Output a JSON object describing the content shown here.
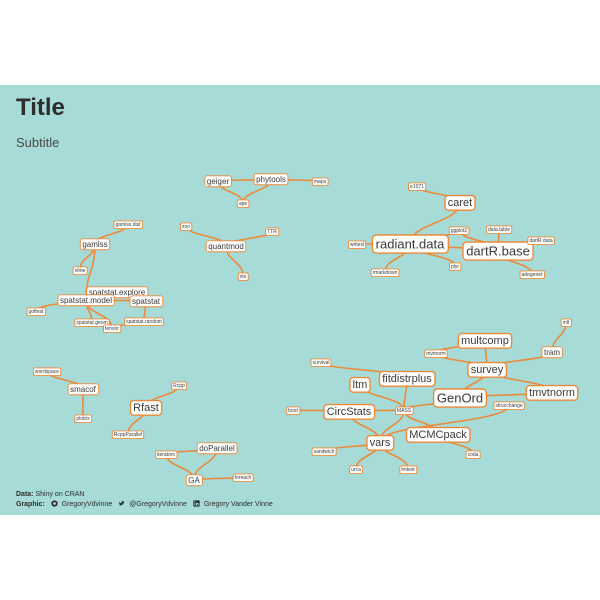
{
  "header": {
    "title": "Title",
    "subtitle": "Subtitle"
  },
  "caption": {
    "data_label": "Data:",
    "data_value": "Shiny on CRAN",
    "graphic_label": "Graphic:",
    "github": "GregoryVdvinne",
    "twitter": "@GregoryVdvinne",
    "linkedin": "Gregory Vander Vinne"
  },
  "colors": {
    "panel": "#a6dbd7",
    "edge": "#ec8a3a",
    "label_fill": "#ffffff",
    "text": "#2e2e2e"
  },
  "nodes": [
    {
      "id": "geiger",
      "label": "geiger",
      "size": "s"
    },
    {
      "id": "phytools",
      "label": "phytools",
      "size": "s"
    },
    {
      "id": "ape",
      "label": "ape",
      "size": "xs"
    },
    {
      "id": "maps",
      "label": "maps",
      "size": "xs"
    },
    {
      "id": "caret",
      "label": "caret",
      "size": "m"
    },
    {
      "id": "e1071",
      "label": "e1071",
      "size": "xs"
    },
    {
      "id": "radiant",
      "label": "radiant.data",
      "size": "l"
    },
    {
      "id": "dartr",
      "label": "dartR.base",
      "size": "l"
    },
    {
      "id": "plyr",
      "label": "plyr",
      "size": "xs"
    },
    {
      "id": "ggplot2",
      "label": "ggplot2",
      "size": "xs"
    },
    {
      "id": "rmarkdown",
      "label": "rmarkdown",
      "size": "xs"
    },
    {
      "id": "writexl",
      "label": "writexl",
      "size": "xs"
    },
    {
      "id": "dartrdata",
      "label": "dartR.data",
      "size": "xs"
    },
    {
      "id": "data_table",
      "label": "data.table",
      "size": "xs"
    },
    {
      "id": "adegenet",
      "label": "adegenet",
      "size": "xs"
    },
    {
      "id": "gamlss_dist",
      "label": "gamlss.dist",
      "size": "xs"
    },
    {
      "id": "gamlss",
      "label": "gamlss",
      "size": "s"
    },
    {
      "id": "nlme",
      "label": "nlme",
      "size": "xs"
    },
    {
      "id": "quantmod",
      "label": "quantmod",
      "size": "s"
    },
    {
      "id": "zoo",
      "label": "zoo",
      "size": "xs"
    },
    {
      "id": "ttr",
      "label": "TTR",
      "size": "xs"
    },
    {
      "id": "xts",
      "label": "xts",
      "size": "xs"
    },
    {
      "id": "spat_explore",
      "label": "spatstat.explore",
      "size": "s"
    },
    {
      "id": "spat_model",
      "label": "spatstat.model",
      "size": "s"
    },
    {
      "id": "spatstat",
      "label": "spatstat",
      "size": "s"
    },
    {
      "id": "spat_geom",
      "label": "spatstat.geom",
      "size": "xs"
    },
    {
      "id": "spat_random",
      "label": "spatstat.random",
      "size": "xs"
    },
    {
      "id": "goftest",
      "label": "goftest",
      "size": "xs"
    },
    {
      "id": "tensor",
      "label": "tensor",
      "size": "xs"
    },
    {
      "id": "multcomp",
      "label": "multcomp",
      "size": "m"
    },
    {
      "id": "mvtnorm",
      "label": "mvtnorm",
      "size": "xs"
    },
    {
      "id": "survey",
      "label": "survey",
      "size": "m"
    },
    {
      "id": "tram",
      "label": "tram",
      "size": "s"
    },
    {
      "id": "mlt",
      "label": "mlt",
      "size": "xs"
    },
    {
      "id": "tmvtnorm",
      "label": "tmvtnorm",
      "size": "m"
    },
    {
      "id": "fitdistrplus",
      "label": "fitdistrplus",
      "size": "m"
    },
    {
      "id": "ltm",
      "label": "ltm",
      "size": "m"
    },
    {
      "id": "mass",
      "label": "MASS",
      "size": "xs"
    },
    {
      "id": "survival",
      "label": "survival",
      "size": "xs"
    },
    {
      "id": "genord",
      "label": "GenOrd",
      "size": "l"
    },
    {
      "id": "circstats",
      "label": "CircStats",
      "size": "m"
    },
    {
      "id": "boot",
      "label": "boot",
      "size": "xs"
    },
    {
      "id": "vars",
      "label": "vars",
      "size": "m"
    },
    {
      "id": "mcmcpack",
      "label": "MCMCpack",
      "size": "m"
    },
    {
      "id": "sandwich",
      "label": "sandwich",
      "size": "xs"
    },
    {
      "id": "strucchange",
      "label": "strucchange",
      "size": "xs"
    },
    {
      "id": "urca",
      "label": "urca",
      "size": "xs"
    },
    {
      "id": "coda",
      "label": "coda",
      "size": "xs"
    },
    {
      "id": "lmtest",
      "label": "lmtest",
      "size": "xs"
    },
    {
      "id": "smacof",
      "label": "smacof",
      "size": "s"
    },
    {
      "id": "rfast",
      "label": "Rfast",
      "size": "m"
    },
    {
      "id": "rcpp",
      "label": "Rcpp",
      "size": "xs"
    },
    {
      "id": "rcppparallel",
      "label": "RcppParallel",
      "size": "xs"
    },
    {
      "id": "doparallel",
      "label": "doParallel",
      "size": "s"
    },
    {
      "id": "ga",
      "label": "GA",
      "size": "s"
    },
    {
      "id": "iterators",
      "label": "iterators",
      "size": "xs"
    },
    {
      "id": "foreach",
      "label": "foreach",
      "size": "xs"
    },
    {
      "id": "wordspace",
      "label": "wordspace",
      "size": "xs"
    },
    {
      "id": "plotrix",
      "label": "plotrix",
      "size": "xs"
    }
  ],
  "edges": [
    [
      "geiger",
      "phytools"
    ],
    [
      "geiger",
      "ape"
    ],
    [
      "phytools",
      "ape"
    ],
    [
      "phytools",
      "maps"
    ],
    [
      "caret",
      "e1071"
    ],
    [
      "caret",
      "radiant"
    ],
    [
      "radiant",
      "plyr"
    ],
    [
      "radiant",
      "rmarkdown"
    ],
    [
      "radiant",
      "writexl"
    ],
    [
      "radiant",
      "ggplot2"
    ],
    [
      "radiant",
      "dartr"
    ],
    [
      "dartr",
      "dartrdata"
    ],
    [
      "dartr",
      "data_table"
    ],
    [
      "dartr",
      "adegenet"
    ],
    [
      "dartr",
      "ggplot2"
    ],
    [
      "gamlss",
      "gamlss_dist"
    ],
    [
      "gamlss",
      "nlme"
    ],
    [
      "gamlss",
      "spat_model"
    ],
    [
      "quantmod",
      "zoo"
    ],
    [
      "quantmod",
      "ttr"
    ],
    [
      "quantmod",
      "xts"
    ],
    [
      "spat_explore",
      "spat_model"
    ],
    [
      "spat_explore",
      "spatstat"
    ],
    [
      "spat_model",
      "spatstat"
    ],
    [
      "spat_model",
      "spat_geom"
    ],
    [
      "spatstat",
      "spat_random"
    ],
    [
      "spat_explore",
      "goftest"
    ],
    [
      "spat_geom",
      "tensor"
    ],
    [
      "spat_model",
      "tensor"
    ],
    [
      "spat_random",
      "tensor"
    ],
    [
      "multcomp",
      "mvtnorm"
    ],
    [
      "multcomp",
      "survey"
    ],
    [
      "survey",
      "mvtnorm"
    ],
    [
      "survey",
      "tmvtnorm"
    ],
    [
      "tram",
      "mlt"
    ],
    [
      "tram",
      "survey"
    ],
    [
      "tmvtnorm",
      "genord"
    ],
    [
      "fitdistrplus",
      "mass"
    ],
    [
      "fitdistrplus",
      "survival"
    ],
    [
      "ltm",
      "mass"
    ],
    [
      "genord",
      "mass"
    ],
    [
      "genord",
      "survey"
    ],
    [
      "circstats",
      "mass"
    ],
    [
      "circstats",
      "boot"
    ],
    [
      "circstats",
      "vars"
    ],
    [
      "vars",
      "mass"
    ],
    [
      "vars",
      "sandwich"
    ],
    [
      "vars",
      "strucchange"
    ],
    [
      "vars",
      "urca"
    ],
    [
      "mcmcpack",
      "mass"
    ],
    [
      "mcmcpack",
      "coda"
    ],
    [
      "vars",
      "lmtest"
    ],
    [
      "smacof",
      "wordspace"
    ],
    [
      "smacof",
      "plotrix"
    ],
    [
      "rfast",
      "rcpp"
    ],
    [
      "rfast",
      "rcppparallel"
    ],
    [
      "doparallel",
      "ga"
    ],
    [
      "doparallel",
      "iterators"
    ],
    [
      "ga",
      "foreach"
    ],
    [
      "ga",
      "iterators"
    ]
  ]
}
